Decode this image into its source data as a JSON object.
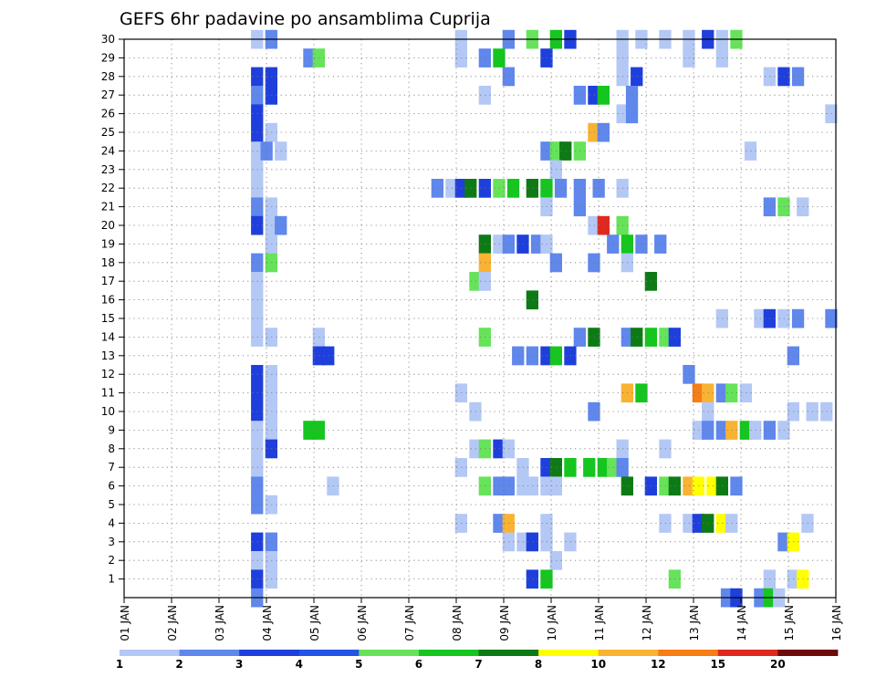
{
  "chart_data": {
    "type": "heatmap",
    "title": "GEFS 6hr padavine po ansamblima Cuprija",
    "xlabel": "",
    "ylabel": "",
    "x_tick_labels": [
      "01 JAN",
      "02 JAN",
      "03 JAN",
      "04 JAN",
      "05 JAN",
      "06 JAN",
      "07 JAN",
      "08 JAN",
      "09 JAN",
      "10 JAN",
      "11 JAN",
      "12 JAN",
      "13 JAN",
      "14 JAN",
      "15 JAN",
      "16 JAN"
    ],
    "y_tick_labels": [
      "1",
      "2",
      "3",
      "4",
      "5",
      "6",
      "7",
      "8",
      "9",
      "10",
      "11",
      "12",
      "13",
      "14",
      "15",
      "16",
      "17",
      "18",
      "19",
      "20",
      "21",
      "22",
      "23",
      "24",
      "25",
      "26",
      "27",
      "28",
      "29",
      "30"
    ],
    "xlim": [
      1,
      16
    ],
    "ylim": [
      0,
      30
    ],
    "grid": true,
    "legend": {
      "placement": "bottom",
      "labels": [
        "1",
        "2",
        "3",
        "4",
        "5",
        "6",
        "7",
        "8",
        "10",
        "12",
        "15",
        "20"
      ],
      "colors": [
        "#b4c8f5",
        "#5f87ec",
        "#1e3fdc",
        "#2254e6",
        "#66e35a",
        "#14c61e",
        "#0e7a16",
        "#ffff00",
        "#f9b232",
        "#f77d14",
        "#e0281e",
        "#6e0a0a"
      ]
    },
    "level_colors": {
      "1": "#b4c8f5",
      "2": "#5f87ec",
      "3": "#1e3fdc",
      "5": "#66e35a",
      "6": "#14c61e",
      "7": "#0e7a16",
      "8": "#ffff00",
      "10": "#f9b232",
      "12": "#f77d14",
      "15": "#e0281e"
    },
    "cells": [
      [
        30,
        3.8,
        1
      ],
      [
        30,
        4.1,
        2
      ],
      [
        30,
        8.1,
        1
      ],
      [
        30,
        9.1,
        2
      ],
      [
        30,
        9.6,
        5
      ],
      [
        30,
        10.1,
        6
      ],
      [
        30,
        10.4,
        3
      ],
      [
        30,
        11.5,
        1
      ],
      [
        30,
        11.9,
        1
      ],
      [
        30,
        12.4,
        1
      ],
      [
        30,
        12.9,
        1
      ],
      [
        30,
        13.3,
        3
      ],
      [
        30,
        13.6,
        1
      ],
      [
        30,
        13.9,
        5
      ],
      [
        29,
        4.9,
        2
      ],
      [
        29,
        5.1,
        5
      ],
      [
        29,
        8.1,
        1
      ],
      [
        29,
        8.6,
        2
      ],
      [
        29,
        8.9,
        6
      ],
      [
        29,
        9.9,
        3
      ],
      [
        29,
        11.5,
        1
      ],
      [
        29,
        12.9,
        1
      ],
      [
        29,
        13.6,
        1
      ],
      [
        28,
        3.8,
        3
      ],
      [
        28,
        4.1,
        3
      ],
      [
        28,
        9.1,
        2
      ],
      [
        28,
        11.5,
        1
      ],
      [
        28,
        11.8,
        3
      ],
      [
        28,
        14.6,
        1
      ],
      [
        28,
        14.9,
        3
      ],
      [
        28,
        15.2,
        2
      ],
      [
        27,
        3.8,
        2
      ],
      [
        27,
        4.1,
        3
      ],
      [
        27,
        8.6,
        1
      ],
      [
        27,
        10.6,
        2
      ],
      [
        27,
        10.9,
        3
      ],
      [
        27,
        11.1,
        6
      ],
      [
        27,
        11.7,
        2
      ],
      [
        26,
        3.8,
        3
      ],
      [
        26,
        11.5,
        1
      ],
      [
        26,
        11.7,
        2
      ],
      [
        26,
        15.9,
        1
      ],
      [
        25,
        3.8,
        3
      ],
      [
        25,
        4.1,
        1
      ],
      [
        25,
        10.9,
        10
      ],
      [
        25,
        11.1,
        2
      ],
      [
        24,
        3.8,
        1
      ],
      [
        24,
        4.0,
        2
      ],
      [
        24,
        4.3,
        1
      ],
      [
        24,
        9.9,
        2
      ],
      [
        24,
        10.1,
        5
      ],
      [
        24,
        10.3,
        7
      ],
      [
        24,
        10.6,
        5
      ],
      [
        24,
        14.2,
        1
      ],
      [
        23,
        3.8,
        1
      ],
      [
        23,
        10.1,
        1
      ],
      [
        22,
        3.8,
        1
      ],
      [
        22,
        7.6,
        2
      ],
      [
        22,
        7.9,
        1
      ],
      [
        22,
        8.1,
        3
      ],
      [
        22,
        8.3,
        7
      ],
      [
        22,
        8.6,
        3
      ],
      [
        22,
        8.9,
        5
      ],
      [
        22,
        9.2,
        6
      ],
      [
        22,
        9.6,
        7
      ],
      [
        22,
        9.9,
        6
      ],
      [
        22,
        10.2,
        2
      ],
      [
        22,
        10.6,
        2
      ],
      [
        22,
        11.0,
        2
      ],
      [
        22,
        11.5,
        1
      ],
      [
        21,
        3.8,
        2
      ],
      [
        21,
        4.1,
        1
      ],
      [
        21,
        9.9,
        1
      ],
      [
        21,
        10.6,
        2
      ],
      [
        21,
        14.6,
        2
      ],
      [
        21,
        14.9,
        5
      ],
      [
        21,
        15.3,
        1
      ],
      [
        20,
        3.8,
        3
      ],
      [
        20,
        4.1,
        1
      ],
      [
        20,
        4.3,
        2
      ],
      [
        20,
        10.9,
        1
      ],
      [
        20,
        11.1,
        15
      ],
      [
        20,
        11.5,
        5
      ],
      [
        19,
        4.1,
        1
      ],
      [
        19,
        8.6,
        7
      ],
      [
        19,
        8.9,
        1
      ],
      [
        19,
        9.1,
        2
      ],
      [
        19,
        9.4,
        3
      ],
      [
        19,
        9.7,
        2
      ],
      [
        19,
        9.9,
        1
      ],
      [
        19,
        11.3,
        2
      ],
      [
        19,
        11.6,
        6
      ],
      [
        19,
        11.9,
        2
      ],
      [
        19,
        12.3,
        2
      ],
      [
        18,
        3.8,
        2
      ],
      [
        18,
        4.1,
        5
      ],
      [
        18,
        8.6,
        10
      ],
      [
        18,
        10.1,
        2
      ],
      [
        18,
        10.9,
        2
      ],
      [
        18,
        11.6,
        1
      ],
      [
        17,
        3.8,
        1
      ],
      [
        17,
        8.4,
        5
      ],
      [
        17,
        8.6,
        1
      ],
      [
        17,
        12.1,
        7
      ],
      [
        16,
        3.8,
        1
      ],
      [
        16,
        9.6,
        7
      ],
      [
        15,
        3.8,
        1
      ],
      [
        15,
        13.6,
        1
      ],
      [
        15,
        14.4,
        1
      ],
      [
        15,
        14.6,
        3
      ],
      [
        15,
        14.9,
        1
      ],
      [
        15,
        15.2,
        2
      ],
      [
        15,
        15.9,
        2
      ],
      [
        14,
        3.8,
        1
      ],
      [
        14,
        4.1,
        1
      ],
      [
        14,
        5.1,
        1
      ],
      [
        14,
        8.6,
        5
      ],
      [
        14,
        10.6,
        2
      ],
      [
        14,
        10.9,
        7
      ],
      [
        14,
        11.6,
        2
      ],
      [
        14,
        11.8,
        7
      ],
      [
        14,
        12.1,
        6
      ],
      [
        14,
        12.4,
        5
      ],
      [
        14,
        12.6,
        3
      ],
      [
        13,
        5.1,
        3
      ],
      [
        13,
        5.3,
        3
      ],
      [
        13,
        9.3,
        2
      ],
      [
        13,
        9.6,
        2
      ],
      [
        13,
        9.9,
        3
      ],
      [
        13,
        10.1,
        6
      ],
      [
        13,
        10.4,
        3
      ],
      [
        13,
        15.1,
        2
      ],
      [
        12,
        3.8,
        3
      ],
      [
        12,
        4.1,
        1
      ],
      [
        12,
        12.9,
        2
      ],
      [
        11,
        3.8,
        3
      ],
      [
        11,
        4.1,
        1
      ],
      [
        11,
        8.1,
        1
      ],
      [
        11,
        11.6,
        10
      ],
      [
        11,
        11.9,
        6
      ],
      [
        11,
        13.1,
        12
      ],
      [
        11,
        13.3,
        10
      ],
      [
        11,
        13.6,
        2
      ],
      [
        11,
        13.8,
        5
      ],
      [
        11,
        14.1,
        1
      ],
      [
        10,
        3.8,
        3
      ],
      [
        10,
        4.1,
        1
      ],
      [
        10,
        8.4,
        1
      ],
      [
        10,
        10.9,
        2
      ],
      [
        10,
        13.3,
        1
      ],
      [
        10,
        15.1,
        1
      ],
      [
        10,
        15.5,
        1
      ],
      [
        10,
        15.8,
        1
      ],
      [
        9,
        3.8,
        1
      ],
      [
        9,
        4.1,
        1
      ],
      [
        9,
        4.9,
        6
      ],
      [
        9,
        5.1,
        6
      ],
      [
        9,
        13.1,
        1
      ],
      [
        9,
        13.3,
        2
      ],
      [
        9,
        13.6,
        2
      ],
      [
        9,
        13.8,
        10
      ],
      [
        9,
        14.1,
        6
      ],
      [
        9,
        14.3,
        1
      ],
      [
        9,
        14.6,
        2
      ],
      [
        9,
        14.9,
        1
      ],
      [
        8,
        3.8,
        1
      ],
      [
        8,
        4.1,
        3
      ],
      [
        8,
        8.4,
        1
      ],
      [
        8,
        8.6,
        5
      ],
      [
        8,
        8.9,
        3
      ],
      [
        8,
        9.1,
        1
      ],
      [
        8,
        11.5,
        1
      ],
      [
        8,
        12.4,
        1
      ],
      [
        7,
        3.8,
        1
      ],
      [
        7,
        8.1,
        1
      ],
      [
        7,
        9.4,
        1
      ],
      [
        7,
        9.9,
        3
      ],
      [
        7,
        10.1,
        7
      ],
      [
        7,
        10.4,
        6
      ],
      [
        7,
        10.8,
        6
      ],
      [
        7,
        11.1,
        6
      ],
      [
        7,
        11.3,
        5
      ],
      [
        7,
        11.5,
        2
      ],
      [
        6,
        3.8,
        2
      ],
      [
        6,
        5.4,
        1
      ],
      [
        6,
        8.6,
        5
      ],
      [
        6,
        8.9,
        2
      ],
      [
        6,
        9.1,
        2
      ],
      [
        6,
        9.4,
        1
      ],
      [
        6,
        9.6,
        1
      ],
      [
        6,
        9.9,
        1
      ],
      [
        6,
        10.1,
        1
      ],
      [
        6,
        11.6,
        7
      ],
      [
        6,
        12.1,
        3
      ],
      [
        6,
        12.4,
        5
      ],
      [
        6,
        12.6,
        7
      ],
      [
        6,
        12.9,
        10
      ],
      [
        6,
        13.1,
        8
      ],
      [
        6,
        13.4,
        8
      ],
      [
        6,
        13.6,
        7
      ],
      [
        6,
        13.9,
        2
      ],
      [
        5,
        3.8,
        2
      ],
      [
        5,
        4.1,
        1
      ],
      [
        4,
        8.1,
        1
      ],
      [
        4,
        8.9,
        2
      ],
      [
        4,
        9.1,
        10
      ],
      [
        4,
        9.9,
        1
      ],
      [
        4,
        12.4,
        1
      ],
      [
        4,
        12.9,
        1
      ],
      [
        4,
        13.1,
        3
      ],
      [
        4,
        13.3,
        7
      ],
      [
        4,
        13.6,
        8
      ],
      [
        4,
        13.8,
        1
      ],
      [
        4,
        15.4,
        1
      ],
      [
        3,
        3.8,
        3
      ],
      [
        3,
        4.1,
        2
      ],
      [
        3,
        9.1,
        1
      ],
      [
        3,
        9.4,
        1
      ],
      [
        3,
        9.6,
        3
      ],
      [
        3,
        9.9,
        1
      ],
      [
        3,
        10.4,
        1
      ],
      [
        3,
        14.9,
        2
      ],
      [
        3,
        15.1,
        8
      ],
      [
        2,
        3.8,
        1
      ],
      [
        2,
        4.1,
        1
      ],
      [
        2,
        10.1,
        1
      ],
      [
        1,
        3.8,
        3
      ],
      [
        1,
        4.1,
        1
      ],
      [
        1,
        9.6,
        3
      ],
      [
        1,
        9.9,
        6
      ],
      [
        1,
        12.6,
        5
      ],
      [
        1,
        14.6,
        1
      ],
      [
        1,
        15.1,
        1
      ],
      [
        1,
        15.3,
        8
      ],
      [
        0,
        3.8,
        2
      ],
      [
        0,
        13.7,
        2
      ],
      [
        0,
        13.9,
        3
      ],
      [
        0,
        14.4,
        2
      ],
      [
        0,
        14.6,
        6
      ],
      [
        0,
        14.8,
        1
      ]
    ]
  }
}
